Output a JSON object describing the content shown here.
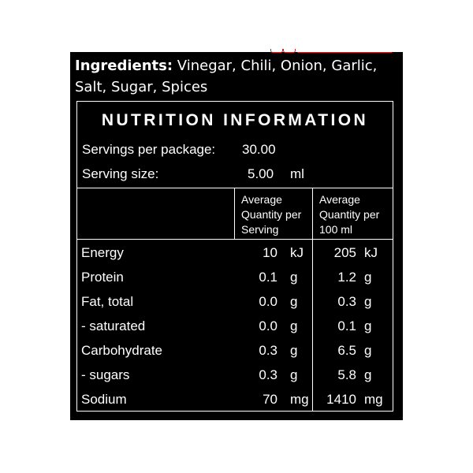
{
  "ingredients": {
    "label": "Ingredients:",
    "text": " Vinegar, Chili, Onion, Garlic, Salt, Sugar, Spices"
  },
  "nutrition": {
    "title": "NUTRITION INFORMATION",
    "servings_label": "Servings per package:",
    "servings_value": "30.00",
    "serving_size_label": "Serving size:",
    "serving_size_value": "5.00",
    "serving_size_unit": "ml",
    "col1_header": [
      "Average",
      "Quantity per",
      "Serving"
    ],
    "col2_header": [
      "Average",
      "Quantity per",
      "100 ml"
    ],
    "rows": [
      {
        "name": "Energy",
        "per_serving": "10",
        "unit1": "kJ",
        "per_100": "205",
        "unit2": "kJ"
      },
      {
        "name": "Protein",
        "per_serving": "0.1",
        "unit1": "g",
        "per_100": "1.2",
        "unit2": "g"
      },
      {
        "name": "Fat, total",
        "per_serving": "0.0",
        "unit1": "g",
        "per_100": "0.3",
        "unit2": "g"
      },
      {
        "name": "- saturated",
        "per_serving": "0.0",
        "unit1": "g",
        "per_100": "0.1",
        "unit2": "g"
      },
      {
        "name": "Carbohydrate",
        "per_serving": "0.3",
        "unit1": "g",
        "per_100": "6.5",
        "unit2": "g"
      },
      {
        "name": "- sugars",
        "per_serving": "0.3",
        "unit1": "g",
        "per_100": "5.8",
        "unit2": "g"
      },
      {
        "name": "Sodium",
        "per_serving": "70",
        "unit1": "mg",
        "per_100": "1410",
        "unit2": "mg"
      }
    ]
  },
  "colors": {
    "background": "#000000",
    "text": "#ffffff",
    "accent": "#c0282a"
  }
}
